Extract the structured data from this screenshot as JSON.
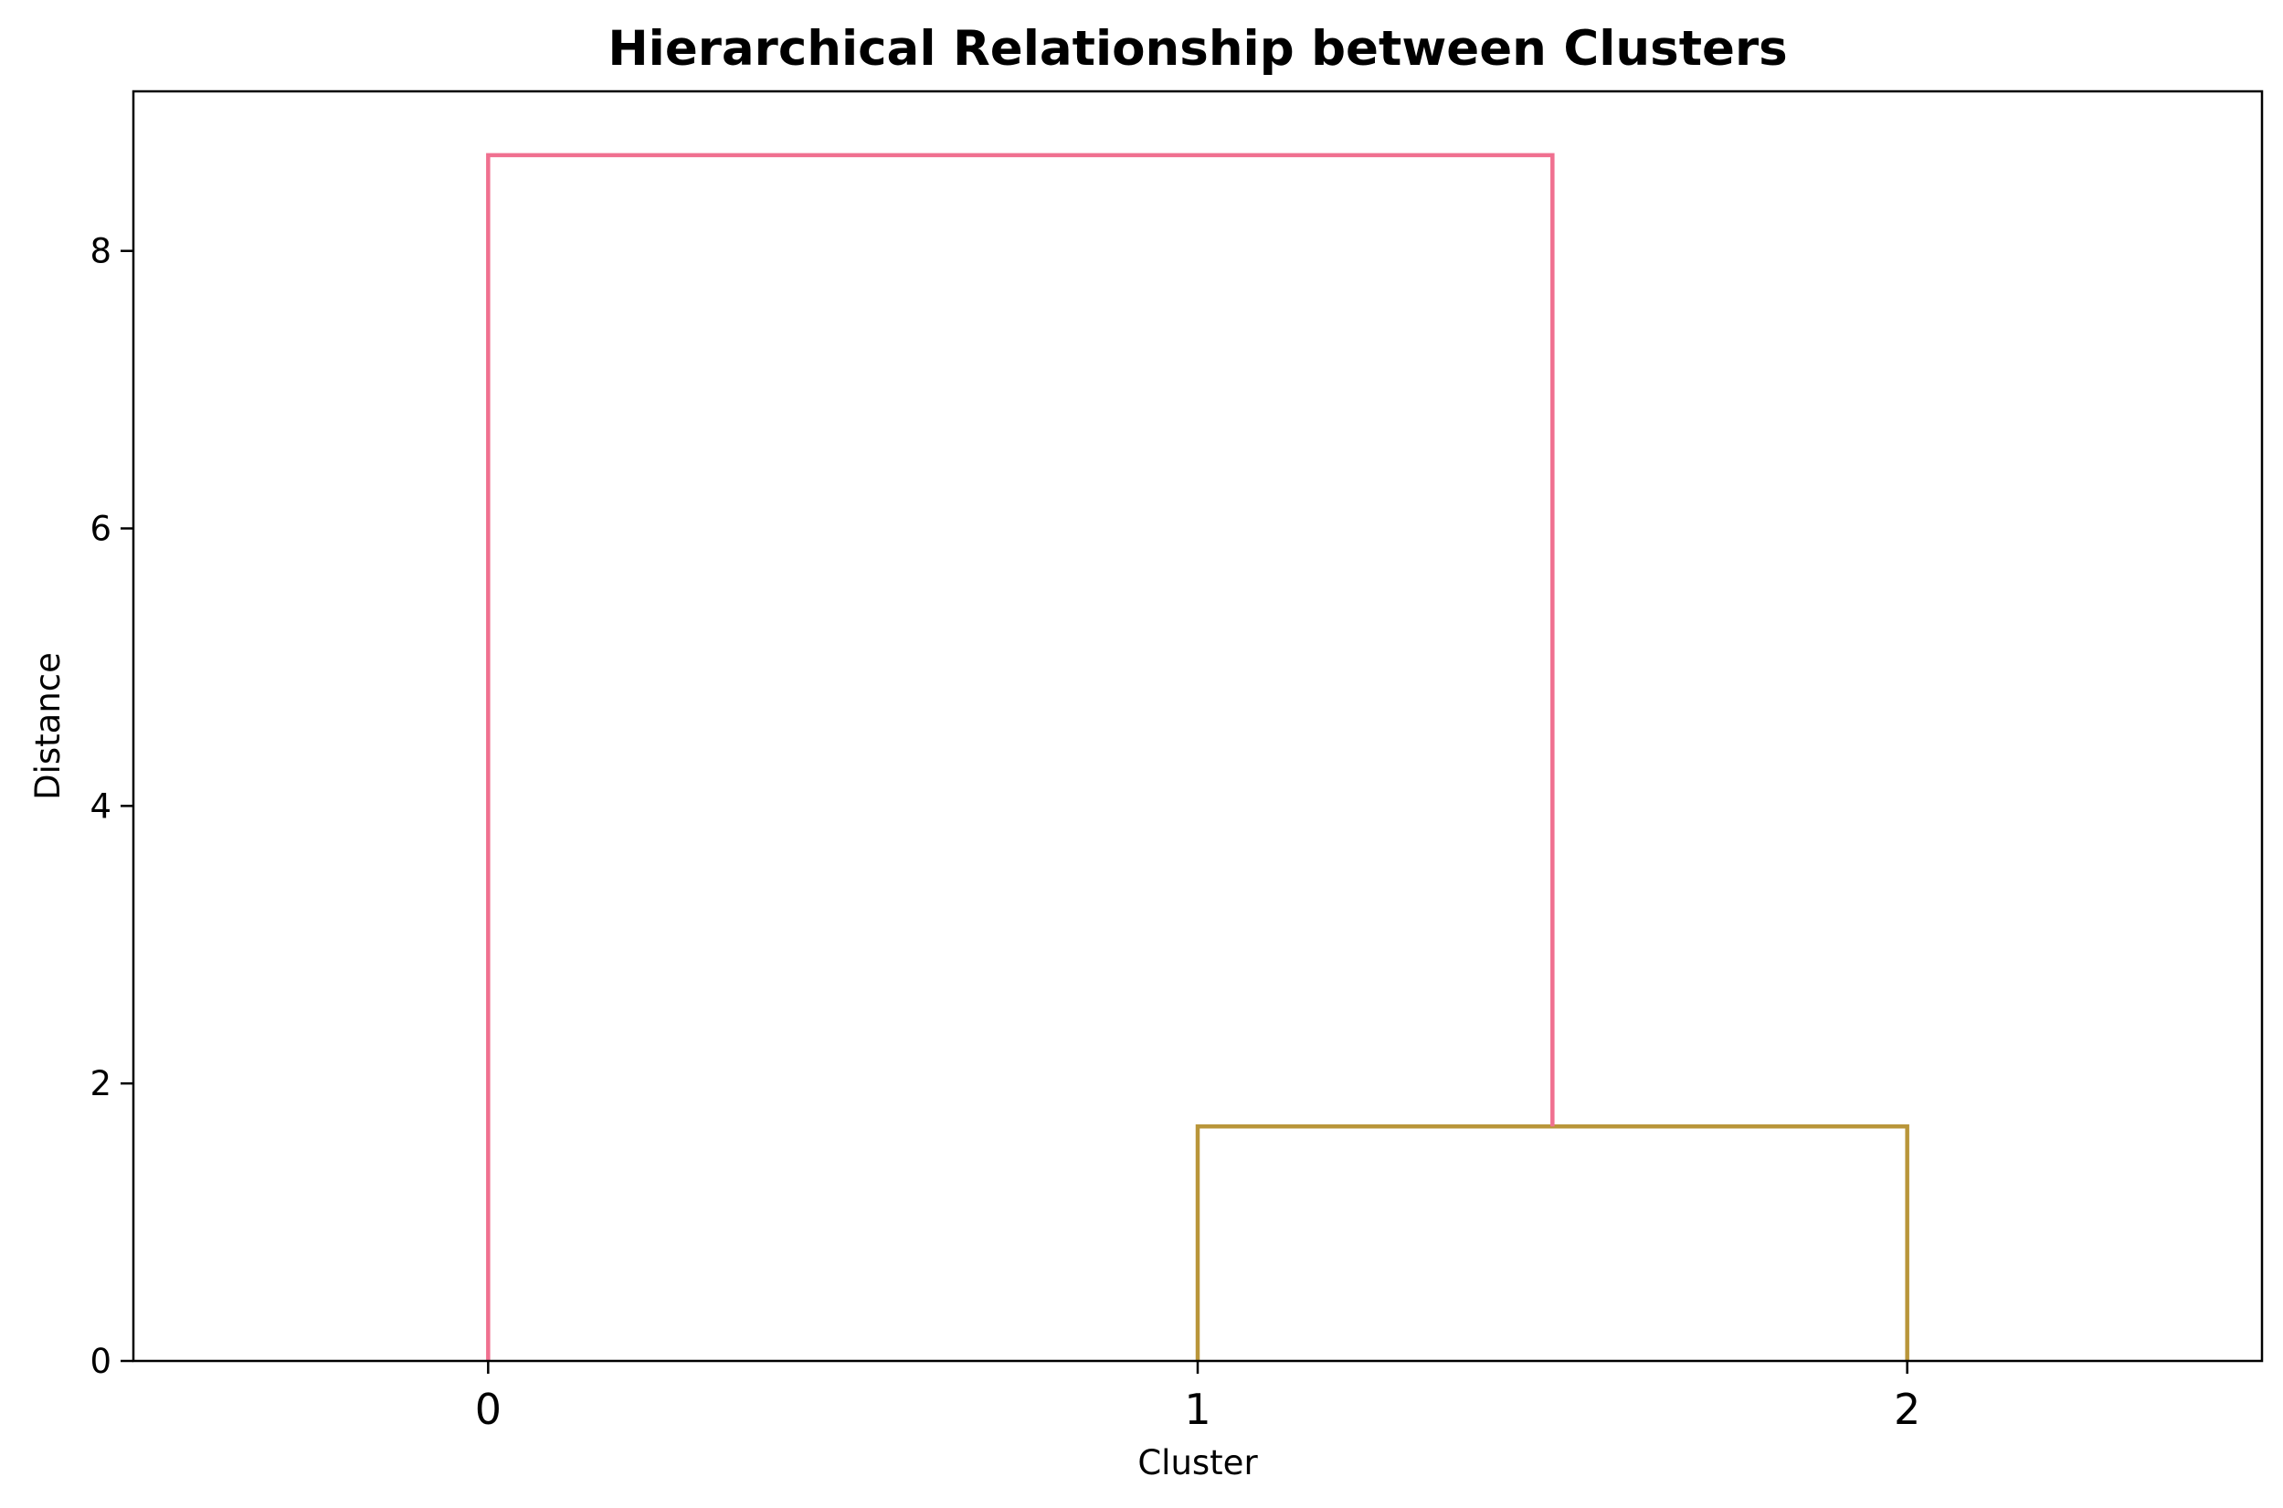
{
  "chart_data": {
    "type": "dendrogram",
    "title": "Hierarchical Relationship between Clusters",
    "xlabel": "Cluster",
    "ylabel": "Distance",
    "leaves": [
      "0",
      "1",
      "2"
    ],
    "ylim": [
      0,
      9.15
    ],
    "yticks": [
      0,
      2,
      4,
      6,
      8
    ],
    "xlim": [
      -0.5,
      2.5
    ],
    "grid": false,
    "legend": "none",
    "links": [
      {
        "left": "1",
        "right": "2",
        "distance": 1.69,
        "color": "#b9963a"
      },
      {
        "left": "0",
        "right": "(1,2)",
        "distance": 8.69,
        "color": "#f07090"
      }
    ]
  }
}
